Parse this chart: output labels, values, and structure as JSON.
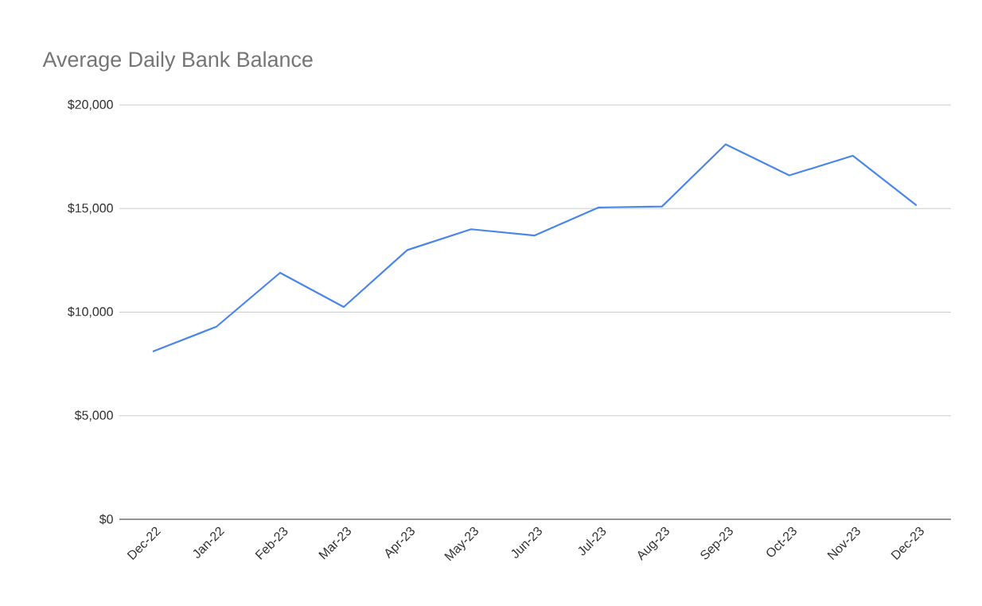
{
  "chart_data": {
    "type": "line",
    "title": "Average Daily Bank Balance",
    "categories": [
      "Dec-22",
      "Jan-22",
      "Feb-23",
      "Mar-23",
      "Apr-23",
      "May-23",
      "Jun-23",
      "Jul-23",
      "Aug-23",
      "Sep-23",
      "Oct-23",
      "Nov-23",
      "Dec-23"
    ],
    "series": [
      {
        "color": "#4a86e8",
        "values": [
          8100,
          9300,
          11900,
          10250,
          13000,
          14000,
          13700,
          15050,
          15100,
          18100,
          16600,
          17550,
          15150
        ]
      }
    ],
    "ylim": [
      0,
      20000
    ],
    "yticks": [
      {
        "value": 0,
        "label": "$0"
      },
      {
        "value": 5000,
        "label": "$5,000"
      },
      {
        "value": 10000,
        "label": "$10,000"
      },
      {
        "value": 15000,
        "label": "$15,000"
      },
      {
        "value": 20000,
        "label": "$20,000"
      }
    ],
    "grid": "y"
  }
}
